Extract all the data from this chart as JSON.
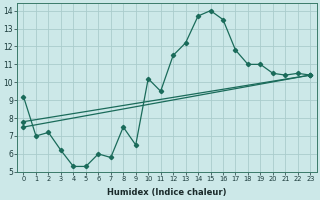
{
  "xlabel": "Humidex (Indice chaleur)",
  "bg_color": "#cce8e8",
  "grid_color": "#aacccc",
  "line_color": "#1a6b5a",
  "xlim": [
    -0.5,
    23.5
  ],
  "ylim": [
    5,
    14.4
  ],
  "xticks": [
    0,
    1,
    2,
    3,
    4,
    5,
    6,
    7,
    8,
    9,
    10,
    11,
    12,
    13,
    14,
    15,
    16,
    17,
    18,
    19,
    20,
    21,
    22,
    23
  ],
  "yticks": [
    5,
    6,
    7,
    8,
    9,
    10,
    11,
    12,
    13,
    14
  ],
  "line1_x": [
    0,
    1,
    2,
    3,
    4,
    5,
    6,
    7,
    8,
    9,
    10,
    11,
    12,
    13,
    14,
    15,
    16,
    17,
    18,
    19,
    20,
    21,
    22,
    23
  ],
  "line1_y": [
    9.2,
    7.0,
    7.2,
    6.2,
    5.3,
    5.3,
    6.0,
    5.8,
    7.5,
    6.5,
    10.2,
    9.5,
    11.5,
    12.2,
    13.7,
    14.0,
    13.5,
    11.8,
    11.0,
    11.0,
    10.5,
    10.4,
    10.5,
    10.4
  ],
  "line2_x": [
    0,
    23
  ],
  "line2_y": [
    7.8,
    10.4
  ],
  "line3_x": [
    0,
    23
  ],
  "line3_y": [
    7.5,
    10.4
  ],
  "xtick_labels": [
    "0",
    "1",
    "2",
    "3",
    "4",
    "5",
    "6",
    "7",
    "8",
    "9",
    "10",
    "11",
    "12",
    "13",
    "14",
    "15",
    "16",
    "17",
    "18",
    "19",
    "20",
    "21",
    "22",
    "23"
  ]
}
